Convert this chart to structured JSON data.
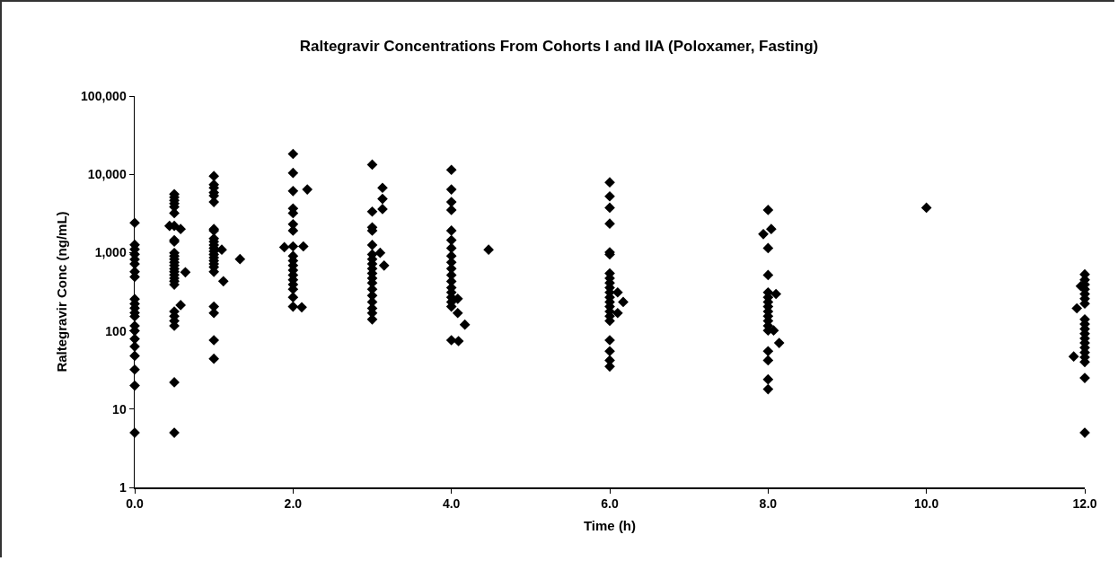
{
  "chart_data": {
    "type": "scatter",
    "title": "Raltegravir Concentrations From Cohorts I and IIA (Poloxamer, Fasting)",
    "xlabel": "Time (h)",
    "ylabel": "Raltegravir Conc (ng/mL)",
    "x": [
      0,
      0,
      0,
      0,
      0,
      0,
      0,
      0,
      0,
      0,
      0,
      0,
      0,
      0,
      0,
      0,
      0,
      0,
      0,
      0,
      0,
      0.5,
      0.5,
      0.5,
      0.5,
      0.5,
      0.5,
      0.5,
      0.5,
      0.5,
      0.5,
      0.5,
      0.5,
      0.5,
      0.5,
      0.5,
      0.5,
      0.5,
      0.5,
      0.5,
      0.5,
      0.5,
      0.5,
      0.5,
      0.5,
      0.5,
      0.5,
      0.58,
      0.64,
      0.58,
      0.44,
      1,
      1,
      1,
      1,
      1,
      1,
      1,
      1,
      1,
      1,
      1,
      1,
      1,
      1,
      1,
      1,
      1,
      1,
      1,
      1,
      1,
      1,
      1,
      1.1,
      1.12,
      1.33,
      2,
      2,
      2,
      2,
      2,
      2,
      2,
      2,
      2,
      2,
      2,
      2,
      2,
      2,
      2,
      2,
      2,
      2,
      1.89,
      2.13,
      2.18,
      2.11,
      3,
      3,
      3,
      3,
      3,
      3,
      3,
      3,
      3,
      3,
      3,
      3,
      3,
      3,
      3,
      3,
      3,
      3,
      3.13,
      3.13,
      3.13,
      3.1,
      3.15,
      4,
      4,
      4,
      4,
      4,
      4,
      4,
      4,
      4,
      4,
      4,
      4,
      4,
      4,
      4,
      4,
      4,
      4,
      4.08,
      4.08,
      4.17,
      4.09,
      4.47,
      6,
      6,
      6,
      6,
      6,
      6,
      6,
      6,
      6,
      6,
      6,
      6,
      6,
      6,
      6,
      6,
      6,
      6,
      6,
      6,
      6,
      6.1,
      6.17,
      6.1,
      8,
      8,
      8,
      8,
      8,
      8,
      8,
      8,
      8,
      8,
      8,
      8,
      8,
      8,
      8,
      8,
      7.94,
      8.04,
      8.1,
      8.07,
      8.14,
      10,
      12,
      12,
      12,
      12,
      12,
      12,
      12,
      12,
      12,
      12,
      12,
      12,
      12,
      12,
      12,
      12,
      12,
      12,
      12,
      11.9,
      11.86,
      11.95
    ],
    "series": [
      {
        "color": "#000000",
        "values": [
          2400,
          1260,
          1100,
          950,
          820,
          715,
          570,
          490,
          255,
          222,
          195,
          170,
          153,
          116,
          100,
          79,
          63,
          48,
          32,
          20,
          5,
          5570,
          5080,
          4630,
          4220,
          3840,
          3190,
          2190,
          1440,
          1380,
          990,
          905,
          825,
          750,
          685,
          620,
          570,
          520,
          470,
          430,
          390,
          177,
          154,
          134,
          116,
          22,
          5,
          2000,
          560,
          213,
          2190,
          9490,
          7380,
          6720,
          5840,
          5320,
          4420,
          2000,
          1910,
          1510,
          1380,
          1250,
          1140,
          1040,
          948,
          864,
          787,
          717,
          653,
          568,
          204,
          169,
          76,
          44,
          1090,
          430,
          825,
          18200,
          10400,
          6120,
          3660,
          3190,
          2300,
          1910,
          1200,
          905,
          787,
          685,
          595,
          517,
          450,
          391,
          340,
          269,
          204,
          1170,
          1200,
          6410,
          200,
          13300,
          3340,
          2100,
          1910,
          1250,
          948,
          825,
          717,
          623,
          542,
          471,
          410,
          340,
          282,
          234,
          194,
          169,
          140,
          6720,
          4850,
          3600,
          994,
          684,
          11400,
          6410,
          4420,
          3500,
          1910,
          1440,
          1140,
          905,
          751,
          623,
          517,
          429,
          356,
          310,
          269,
          234,
          204,
          76,
          257,
          169,
          120,
          74,
          1090,
          7880,
          5230,
          3740,
          2340,
          1010,
          948,
          542,
          471,
          410,
          356,
          310,
          269,
          234,
          204,
          177,
          154,
          134,
          76,
          55,
          42,
          35,
          310,
          234,
          169,
          3500,
          1140,
          517,
          310,
          269,
          234,
          204,
          177,
          154,
          134,
          116,
          101,
          55,
          42,
          24,
          18,
          1720,
          2000,
          296,
          101,
          70,
          3740,
          527,
          450,
          391,
          340,
          296,
          257,
          223,
          140,
          122,
          106,
          92,
          80,
          70,
          61,
          53,
          46,
          40,
          25,
          5,
          194,
          47,
          373
        ]
      }
    ],
    "marker": "diamond",
    "log": "y",
    "grid": false,
    "xlim": [
      0,
      12
    ],
    "xticks": [
      {
        "value": 0,
        "label": "0.0"
      },
      {
        "value": 2,
        "label": "2.0"
      },
      {
        "value": 4,
        "label": "4.0"
      },
      {
        "value": 6,
        "label": "6.0"
      },
      {
        "value": 8,
        "label": "8.0"
      },
      {
        "value": 10,
        "label": "10.0"
      },
      {
        "value": 12,
        "label": "12.0"
      }
    ],
    "ylim": [
      1,
      100000
    ],
    "yticks": [
      1,
      10,
      100,
      {
        "value": 1000,
        "label": "1,000"
      },
      {
        "value": 10000,
        "label": "10,000"
      },
      {
        "value": 100000,
        "label": "100,000"
      }
    ]
  }
}
